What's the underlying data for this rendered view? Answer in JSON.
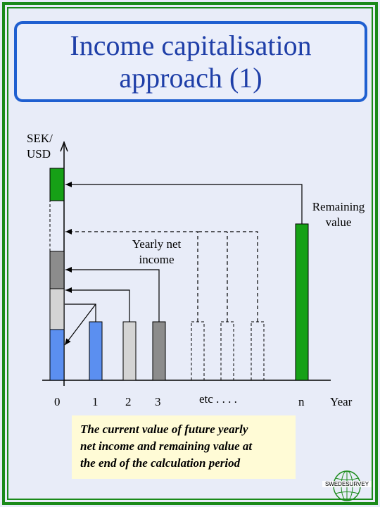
{
  "title": {
    "line1": "Income capitalisation",
    "line2": "approach (1)"
  },
  "axis": {
    "y_label_line1": "SEK/",
    "y_label_line2": "USD",
    "x_label": "Year",
    "ticks": [
      "0",
      "1",
      "2",
      "3",
      "etc . . . .",
      "n"
    ]
  },
  "labels": {
    "remaining_line1": "Remaining",
    "remaining_line2": "value",
    "yearly_line1": "Yearly net",
    "yearly_line2": "income"
  },
  "note": {
    "line1": "The current value of future yearly",
    "line2": "net income and remaining value at",
    "line3": "the end of the calculation period"
  },
  "logo": {
    "text": "SWEDESURVEY",
    "icon": "globe-icon"
  },
  "colors": {
    "frame": "#1a8a1a",
    "title_border": "#1f5fd0",
    "title_text": "#1f3fa8",
    "bar_blue": "#5b8ff0",
    "bar_lightgray": "#d4d4d4",
    "bar_gray": "#8c8c8c",
    "bar_green": "#16a016",
    "note_bg": "#fffbd6"
  }
}
